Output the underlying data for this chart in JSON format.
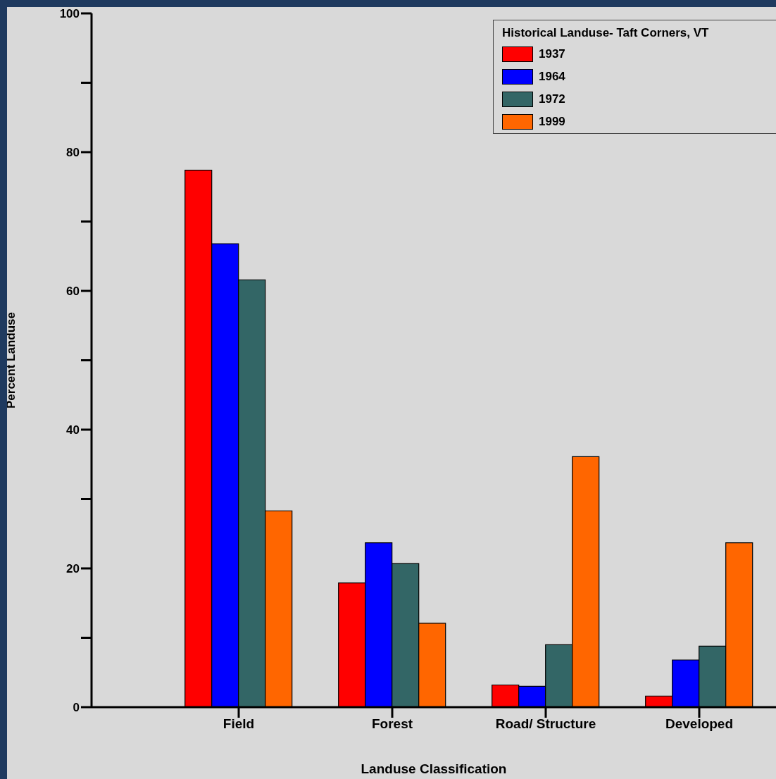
{
  "chart_data": {
    "type": "bar",
    "xlabel": "Landuse Classification",
    "ylabel": "Percent Landuse",
    "legend_title": "Historical Landuse- Taft Corners, VT",
    "categories": [
      "Field",
      "Forest",
      "Road/ Structure",
      "Developed"
    ],
    "series": [
      {
        "name": "1937",
        "color": "#ff0000",
        "values": [
          77.4,
          17.9,
          3.2,
          1.6
        ]
      },
      {
        "name": "1964",
        "color": "#0000ff",
        "values": [
          66.8,
          23.7,
          3.0,
          6.8
        ]
      },
      {
        "name": "1972",
        "color": "#336666",
        "values": [
          61.6,
          20.7,
          9.0,
          8.8
        ]
      },
      {
        "name": "1999",
        "color": "#ff6600",
        "values": [
          28.3,
          12.1,
          36.1,
          23.7
        ]
      }
    ],
    "ylim": [
      0,
      100
    ],
    "yticks": [
      0,
      {
        "value": 10,
        "label": null
      },
      20,
      {
        "value": 30,
        "label": null
      },
      40,
      {
        "value": 50,
        "label": null
      },
      60,
      {
        "value": 70,
        "label": null
      },
      80,
      {
        "value": 90,
        "label": null
      },
      100
    ],
    "grid": false,
    "legend": "top right"
  }
}
